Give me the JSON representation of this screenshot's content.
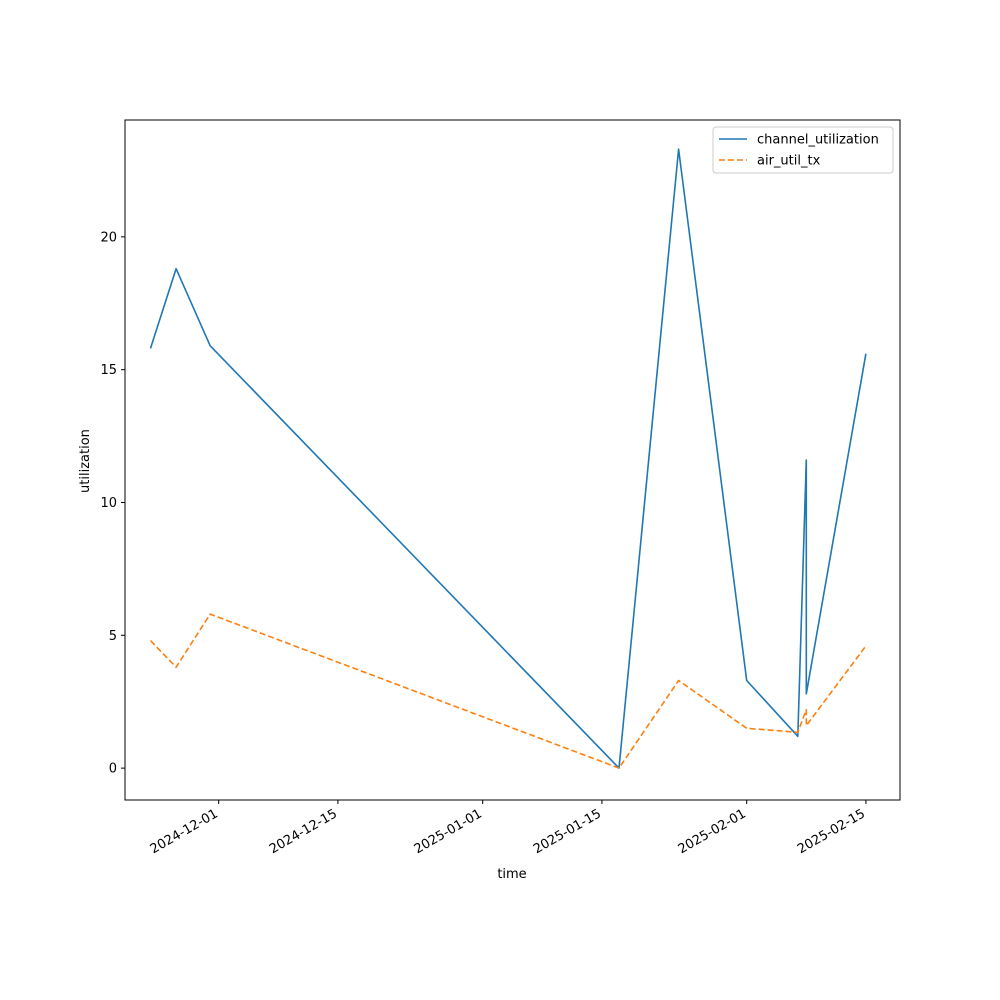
{
  "chart_data": {
    "type": "line",
    "title": "",
    "xlabel": "time",
    "ylabel": "utilization",
    "x_is_date": true,
    "xlim": [
      "2024-11-20",
      "2025-02-19"
    ],
    "ylim": [
      -1.2,
      24.4
    ],
    "x_ticks": [
      "2024-12-01",
      "2024-12-15",
      "2025-01-01",
      "2025-01-15",
      "2025-02-01",
      "2025-02-15"
    ],
    "y_ticks": [
      0,
      5,
      10,
      15,
      20
    ],
    "grid": false,
    "legend": "top-right",
    "x": [
      "2024-11-23",
      "2024-11-26",
      "2024-11-30",
      "2025-01-17",
      "2025-01-24",
      "2025-02-01",
      "2025-02-07",
      "2025-02-08",
      "2025-02-08",
      "2025-02-15"
    ],
    "series": [
      {
        "name": "channel_utilization",
        "color": "#1f77b4",
        "style": "solid",
        "values": [
          15.8,
          18.8,
          15.9,
          0.0,
          23.3,
          3.3,
          1.2,
          11.6,
          2.8,
          15.6
        ]
      },
      {
        "name": "air_util_tx",
        "color": "#ff7f0e",
        "style": "dashed",
        "values": [
          4.8,
          3.8,
          5.8,
          0.0,
          3.3,
          1.5,
          1.35,
          2.2,
          1.6,
          4.6
        ]
      }
    ]
  }
}
